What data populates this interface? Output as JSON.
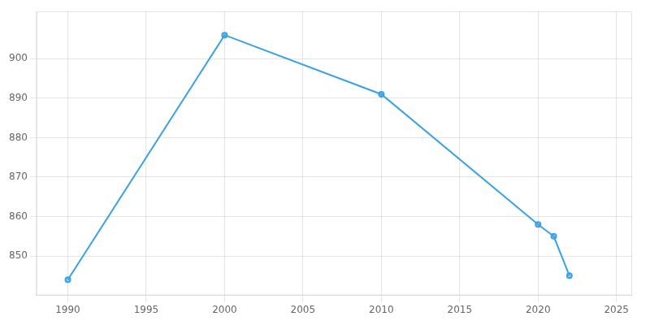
{
  "chart_data": {
    "type": "line",
    "x": [
      1990,
      2000,
      2010,
      2020,
      2021,
      2022
    ],
    "values": [
      844,
      906,
      891,
      858,
      855,
      845
    ],
    "xlim": [
      1988,
      2026
    ],
    "ylim": [
      840,
      912
    ],
    "xticks": [
      1990,
      1995,
      2000,
      2005,
      2010,
      2015,
      2020,
      2025
    ],
    "yticks": [
      850,
      860,
      870,
      880,
      890,
      900
    ],
    "grid": true,
    "marker": "circle"
  }
}
